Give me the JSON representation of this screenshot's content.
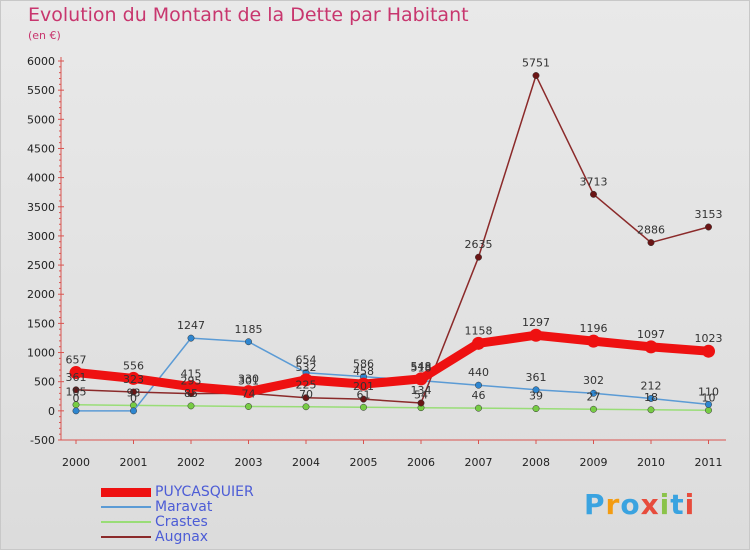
{
  "title": "Evolution du Montant de la Dette par Habitant",
  "subtitle": "(en €)",
  "logo": {
    "text": "Proxiti",
    "colors": [
      "#3aa3e0",
      "#f39c12",
      "#3aa3e0",
      "#e74c3c",
      "#8bc34a",
      "#3aa3e0",
      "#e74c3c"
    ]
  },
  "chart_data": {
    "type": "line",
    "x": [
      "2000",
      "2001",
      "2002",
      "2003",
      "2004",
      "2005",
      "2006",
      "2007",
      "2008",
      "2009",
      "2010",
      "2011"
    ],
    "ylim": [
      -500,
      6000
    ],
    "yticks": [
      "-500",
      "0",
      "500",
      "1000",
      "1500",
      "2000",
      "2500",
      "3000",
      "3500",
      "4000",
      "4500",
      "5000",
      "5500",
      "6000"
    ],
    "grid": false,
    "legend_position": "bottom-left",
    "series": [
      {
        "name": "PUYCASQUIER",
        "color": "#ee1111",
        "width": 9,
        "marker": "#ee1111",
        "values": [
          657,
          556,
          415,
          330,
          532,
          458,
          548,
          1158,
          1297,
          1196,
          1097,
          1023
        ],
        "labels": [
          "657",
          "556",
          "415",
          "330",
          "532",
          "458",
          "548",
          "1158",
          "1297",
          "1196",
          "1097",
          "1023"
        ]
      },
      {
        "name": "Maravat",
        "color": "#5b9bd5",
        "width": 1.5,
        "marker": "#2e86d0",
        "values": [
          0,
          0,
          1247,
          1185,
          654,
          586,
          518,
          440,
          361,
          302,
          212,
          110
        ],
        "labels": [
          "0",
          "0",
          "1247",
          "1185",
          "654",
          "586",
          "518",
          "440",
          "361",
          "302",
          "212",
          "110"
        ]
      },
      {
        "name": "Crastes",
        "color": "#99dd77",
        "width": 1.5,
        "marker": "#77cc44",
        "values": [
          105,
          93,
          85,
          74,
          70,
          61,
          54,
          46,
          39,
          27,
          18,
          10
        ],
        "labels": [
          "105",
          "93",
          "85",
          "74",
          "70",
          "61",
          "54",
          "46",
          "39",
          "27",
          "18",
          "10"
        ]
      },
      {
        "name": "Augnax",
        "color": "#8b2a2a",
        "width": 1.5,
        "marker": "#6b1515",
        "values": [
          361,
          323,
          295,
          301,
          225,
          201,
          134,
          2635,
          5751,
          3713,
          2886,
          3153
        ],
        "labels": [
          "361",
          "323",
          "295",
          "301",
          "225",
          "201",
          "134",
          "2635",
          "5751",
          "3713",
          "2886",
          "3153"
        ]
      }
    ]
  }
}
